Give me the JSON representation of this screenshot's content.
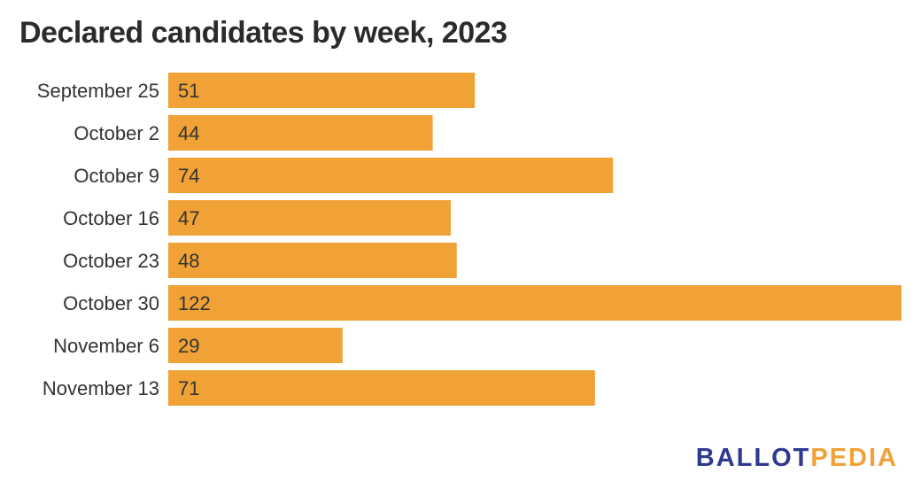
{
  "colors": {
    "bar": "#f0a237",
    "title": "#2b2b2b",
    "label": "#333333",
    "logo_primary": "#2f3a8f",
    "logo_accent": "#f0a237"
  },
  "logo": {
    "part1": "BALLOT",
    "part2": "PEDIA"
  },
  "chart_data": {
    "type": "bar",
    "orientation": "horizontal",
    "title": "Declared candidates by week, 2023",
    "categories": [
      "September 25",
      "October 2",
      "October 9",
      "October 16",
      "October 23",
      "October 30",
      "November 6",
      "November 13"
    ],
    "values": [
      51,
      44,
      74,
      47,
      48,
      122,
      29,
      71
    ],
    "xlim": [
      0,
      122
    ],
    "grid": false,
    "legend": "none",
    "data_labels": "inside-left"
  }
}
